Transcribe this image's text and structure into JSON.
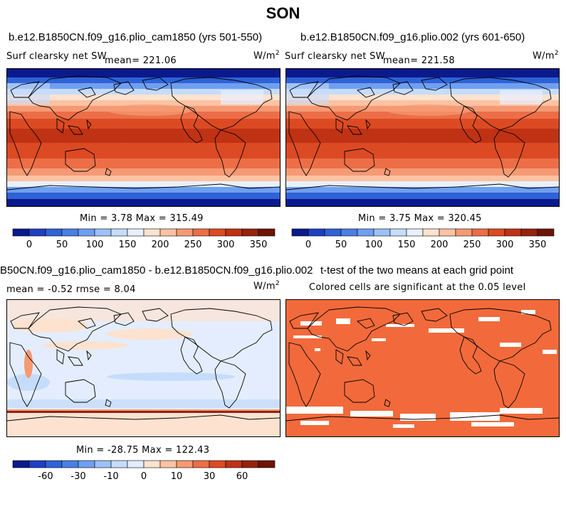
{
  "main_title": "SON",
  "panels": [
    {
      "title": "b.e12.B1850CN.f09_g16.plio_cam1850 (yrs 501-550)",
      "left_label": "Surf clearsky net SW",
      "mean_label": "mean= 221.06",
      "units": "W/m",
      "units_exp": "2",
      "minmax": "Min =   3.78 Max = 315.49"
    },
    {
      "title": "b.e12.B1850CN.f09_g16.plio.002 (yrs 601-650)",
      "left_label": "Surf clearsky net SW",
      "mean_label": "mean= 221.58",
      "units": "W/m",
      "units_exp": "2",
      "minmax": "Min =   3.75 Max = 320.45"
    },
    {
      "title": "B50CN.f09_g16.plio_cam1850 - b.e12.B1850CN.f09_g16.plio.002",
      "left_label": "mean =  -0.52    rmse =    8.04",
      "units": "W/m",
      "units_exp": "2",
      "minmax": "Min = -28.75 Max = 122.43"
    },
    {
      "title": "t-test of the two means at each grid point",
      "subtitle": "Colored cells are significant at the 0.05 level"
    }
  ],
  "colors": {
    "sw_scale": [
      "#0a1a8c",
      "#1f3fc4",
      "#2f62d6",
      "#4a7fe3",
      "#6f9ff0",
      "#9cc1f7",
      "#c6dcfb",
      "#e8f0fd",
      "#fde2cf",
      "#fbc2a3",
      "#f59a74",
      "#ec6e47",
      "#dc4a23",
      "#bf3214",
      "#97220c",
      "#6e1306"
    ],
    "diff_scale": [
      "#0a1a8c",
      "#1f3fc4",
      "#2f62d6",
      "#4a7fe3",
      "#6f9ff0",
      "#9cc1f7",
      "#c6dcfb",
      "#e3edfd",
      "#fde2cf",
      "#fbc2a3",
      "#f59a74",
      "#ec6e47",
      "#dc4a23",
      "#bf3214",
      "#97220c",
      "#6e1306"
    ],
    "ttest_fill": "#f26a3b"
  },
  "colorbars": {
    "sw_ticks": [
      "0",
      "50",
      "100",
      "150",
      "200",
      "250",
      "300",
      "350"
    ],
    "diff_ticks": [
      "-60",
      "-30",
      "-10",
      "0",
      "10",
      "30",
      "60"
    ]
  },
  "chart_data": [
    {
      "type": "heatmap",
      "title": "b.e12.B1850CN.f09_g16.plio_cam1850 (yrs 501-550)",
      "variable": "Surf clearsky net SW",
      "units": "W/m^2",
      "mean": 221.06,
      "min": 3.78,
      "max": 315.49,
      "color_levels": [
        0,
        25,
        50,
        75,
        100,
        125,
        150,
        175,
        200,
        225,
        250,
        275,
        300,
        325,
        350
      ],
      "colorbar_ticks": [
        0,
        50,
        100,
        150,
        200,
        250,
        300,
        350
      ]
    },
    {
      "type": "heatmap",
      "title": "b.e12.B1850CN.f09_g16.plio.002 (yrs 601-650)",
      "variable": "Surf clearsky net SW",
      "units": "W/m^2",
      "mean": 221.58,
      "min": 3.75,
      "max": 320.45,
      "color_levels": [
        0,
        25,
        50,
        75,
        100,
        125,
        150,
        175,
        200,
        225,
        250,
        275,
        300,
        325,
        350
      ],
      "colorbar_ticks": [
        0,
        50,
        100,
        150,
        200,
        250,
        300,
        350
      ]
    },
    {
      "type": "heatmap",
      "title": "B50CN.f09_g16.plio_cam1850 - b.e12.B1850CN.f09_g16.plio.002",
      "units": "W/m^2",
      "mean": -0.52,
      "rmse": 8.04,
      "min": -28.75,
      "max": 122.43,
      "colorbar_ticks": [
        -60,
        -30,
        -10,
        0,
        10,
        30,
        60
      ]
    },
    {
      "type": "heatmap",
      "title": "t-test of the two means at each grid point",
      "subtitle": "Colored cells are significant at the 0.05 level",
      "significance_level": 0.05
    }
  ]
}
